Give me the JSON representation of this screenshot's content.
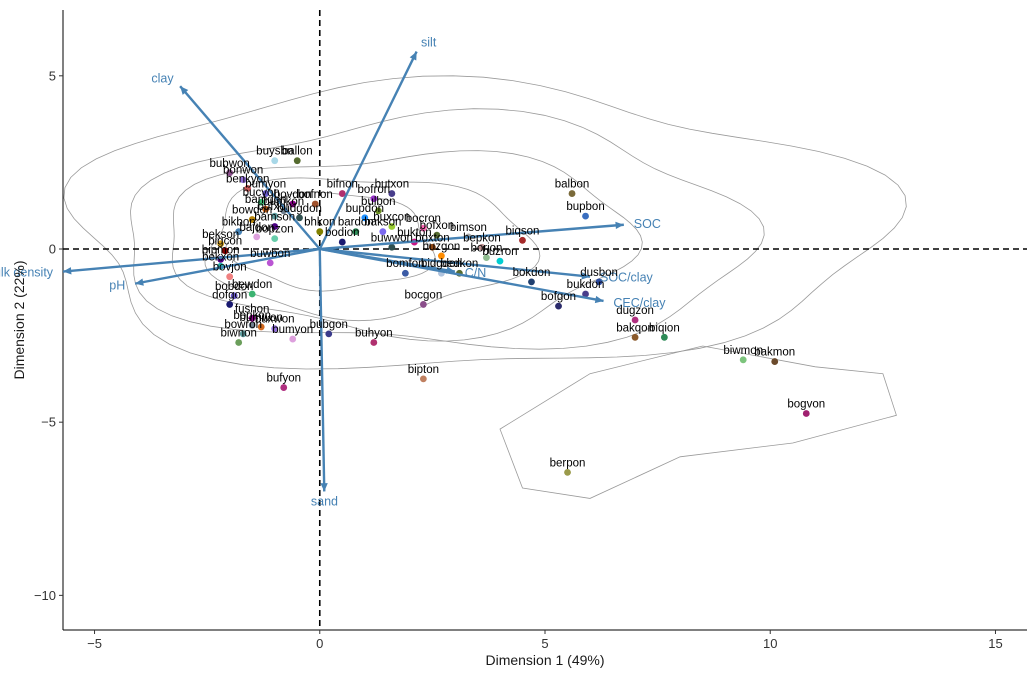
{
  "chart_data": {
    "type": "scatter",
    "xlabel": "Dimension 1 (49%)",
    "ylabel": "Dimension 2 (22%)",
    "xlim": [
      -5.7,
      15.7
    ],
    "ylim": [
      -11.0,
      6.9
    ],
    "x_ticks": [
      -5,
      0,
      5,
      10,
      15
    ],
    "x_tick_labels": [
      "−5",
      "0",
      "5",
      "10",
      "15"
    ],
    "y_ticks": [
      5,
      0,
      -5,
      -10
    ],
    "y_tick_labels": [
      "5",
      "0",
      "−5",
      "−10"
    ],
    "reference_lines": {
      "x": 0,
      "y": 0,
      "style": "dashed"
    },
    "grid": false,
    "vector_color": "#4682b4",
    "loading_vectors": [
      {
        "name": "silt",
        "x": 2.15,
        "y": 5.7
      },
      {
        "name": "clay",
        "x": -3.1,
        "y": 4.7
      },
      {
        "name": "SOC",
        "x": 6.75,
        "y": 0.7
      },
      {
        "name": "SOC/clay",
        "x": 6.0,
        "y": -0.8
      },
      {
        "name": "CEC/clay",
        "x": 6.3,
        "y": -1.5
      },
      {
        "name": "C/N",
        "x": 3.0,
        "y": -0.65
      },
      {
        "name": "sand",
        "x": 0.1,
        "y": -7.0
      },
      {
        "name": "bulk density",
        "x": -5.7,
        "y": -0.65
      },
      {
        "name": "pH",
        "x": -4.1,
        "y": -1.0
      }
    ],
    "points": [
      {
        "label": "buysbn",
        "x": -1.0,
        "y": 2.55,
        "color": "#a8d8e8"
      },
      {
        "label": "ballon",
        "x": -0.5,
        "y": 2.55,
        "color": "#556b2f"
      },
      {
        "label": "bubwon",
        "x": -2.0,
        "y": 2.2,
        "color": "#8b4f8b"
      },
      {
        "label": "bonwon",
        "x": -1.7,
        "y": 2.0,
        "color": "#9370db"
      },
      {
        "label": "benkyon",
        "x": -1.6,
        "y": 1.75,
        "color": "#cd5c5c"
      },
      {
        "label": "bumyon",
        "x": -1.2,
        "y": 1.6,
        "color": "#6a5acd"
      },
      {
        "label": "bifnon",
        "x": 0.5,
        "y": 1.6,
        "color": "#b0306f"
      },
      {
        "label": "butxon",
        "x": 1.6,
        "y": 1.6,
        "color": "#483d8b"
      },
      {
        "label": "bofron",
        "x": 1.2,
        "y": 1.45,
        "color": "#9932cc"
      },
      {
        "label": "bucyon",
        "x": -1.3,
        "y": 1.35,
        "color": "#3cb371"
      },
      {
        "label": "bovdon",
        "x": -0.6,
        "y": 1.3,
        "color": "#8b008b"
      },
      {
        "label": "bofnon",
        "x": -0.1,
        "y": 1.3,
        "color": "#a0522d"
      },
      {
        "label": "bulbon",
        "x": 1.3,
        "y": 1.1,
        "color": "#6b8e23"
      },
      {
        "label": "bamdon",
        "x": -1.2,
        "y": 1.15,
        "color": "#d2691e"
      },
      {
        "label": "bumkon",
        "x": -0.8,
        "y": 1.1,
        "color": "#708090"
      },
      {
        "label": "bufxon",
        "x": -1.0,
        "y": 0.95,
        "color": "#5f9ea0"
      },
      {
        "label": "budgdon",
        "x": -0.45,
        "y": 0.9,
        "color": "#2f4f4f"
      },
      {
        "label": "bowdon",
        "x": -1.5,
        "y": 0.85,
        "color": "#b8860b"
      },
      {
        "label": "bupdon",
        "x": 1.0,
        "y": 0.9,
        "color": "#1e90ff"
      },
      {
        "label": "buxcon",
        "x": 1.6,
        "y": 0.65,
        "color": "#9acd32"
      },
      {
        "label": "bocron",
        "x": 2.3,
        "y": 0.6,
        "color": "#ff69b4"
      },
      {
        "label": "bamson",
        "x": -1.0,
        "y": 0.65,
        "color": "#4b0082"
      },
      {
        "label": "bhkon",
        "x": 0.0,
        "y": 0.5,
        "color": "#808000"
      },
      {
        "label": "bardon",
        "x": 0.8,
        "y": 0.5,
        "color": "#2e8b57"
      },
      {
        "label": "bakson",
        "x": 1.4,
        "y": 0.5,
        "color": "#7b68ee"
      },
      {
        "label": "bofxon",
        "x": 2.6,
        "y": 0.4,
        "color": "#556b2f"
      },
      {
        "label": "bimson",
        "x": 3.3,
        "y": 0.35,
        "color": "#a9a9a9"
      },
      {
        "label": "bukton",
        "x": 2.1,
        "y": 0.2,
        "color": "#c71585"
      },
      {
        "label": "bikbon",
        "x": -1.8,
        "y": 0.5,
        "color": "#4682b4"
      },
      {
        "label": "bajdon",
        "x": -1.4,
        "y": 0.35,
        "color": "#dda0dd"
      },
      {
        "label": "bopzon",
        "x": -1.0,
        "y": 0.3,
        "color": "#66cdaa"
      },
      {
        "label": "bodion",
        "x": 0.5,
        "y": 0.2,
        "color": "#191970"
      },
      {
        "label": "bekson",
        "x": -2.2,
        "y": 0.15,
        "color": "#daa520"
      },
      {
        "label": "buwwon",
        "x": 1.6,
        "y": 0.05,
        "color": "#2f4f4f"
      },
      {
        "label": "boxton",
        "x": 2.5,
        "y": 0.05,
        "color": "#8b4513"
      },
      {
        "label": "bepkon",
        "x": 3.6,
        "y": 0.05,
        "color": "#bc8f8f"
      },
      {
        "label": "biqson",
        "x": 4.5,
        "y": 0.25,
        "color": "#a52a2a"
      },
      {
        "label": "bigcon",
        "x": -2.1,
        "y": -0.05,
        "color": "#800000"
      },
      {
        "label": "buzgon",
        "x": 2.7,
        "y": -0.2,
        "color": "#ff8c00"
      },
      {
        "label": "borjon",
        "x": 3.7,
        "y": -0.25,
        "color": "#8fbc8f"
      },
      {
        "label": "buzron",
        "x": 4.0,
        "y": -0.35,
        "color": "#00ced1"
      },
      {
        "label": "bipmon",
        "x": -2.2,
        "y": -0.3,
        "color": "#4b0082"
      },
      {
        "label": "bekxon",
        "x": -2.2,
        "y": -0.5,
        "color": "#20b2aa"
      },
      {
        "label": "buwbon",
        "x": -1.1,
        "y": -0.4,
        "color": "#ba55d3"
      },
      {
        "label": "bovjon",
        "x": -2.0,
        "y": -0.8,
        "color": "#f08080"
      },
      {
        "label": "bomfon",
        "x": 1.9,
        "y": -0.7,
        "color": "#3b5ba5"
      },
      {
        "label": "bidgdon",
        "x": 2.7,
        "y": -0.7,
        "color": "#b0c4de"
      },
      {
        "label": "bedkon",
        "x": 3.1,
        "y": -0.7,
        "color": "#556b2f"
      },
      {
        "label": "balbon",
        "x": 5.6,
        "y": 1.6,
        "color": "#7a6a3a"
      },
      {
        "label": "bupbon",
        "x": 5.9,
        "y": 0.95,
        "color": "#3a6fc0"
      },
      {
        "label": "bokdon",
        "x": 4.7,
        "y": -0.95,
        "color": "#1f3f6f"
      },
      {
        "label": "dusbon",
        "x": 6.2,
        "y": -0.95,
        "color": "#2a4aa0"
      },
      {
        "label": "bukdon",
        "x": 5.9,
        "y": -1.3,
        "color": "#483d8b"
      },
      {
        "label": "bofgon",
        "x": 5.3,
        "y": -1.65,
        "color": "#2b2b6b"
      },
      {
        "label": "bocgon",
        "x": 2.3,
        "y": -1.6,
        "color": "#8b4f8b"
      },
      {
        "label": "dugzon",
        "x": 7.0,
        "y": -2.05,
        "color": "#b03080"
      },
      {
        "label": "bakqon",
        "x": 7.0,
        "y": -2.55,
        "color": "#8b5a2b"
      },
      {
        "label": "biqion",
        "x": 7.65,
        "y": -2.55,
        "color": "#2e8b57"
      },
      {
        "label": "bobdon",
        "x": -1.9,
        "y": -1.35,
        "color": "#6a5acd"
      },
      {
        "label": "bewdon",
        "x": -1.5,
        "y": -1.3,
        "color": "#3cb371"
      },
      {
        "label": "dofgon",
        "x": -2.0,
        "y": -1.6,
        "color": "#191970"
      },
      {
        "label": "fushon",
        "x": -1.5,
        "y": -2.0,
        "color": "#8b008b"
      },
      {
        "label": "bopkon",
        "x": -1.5,
        "y": -2.2,
        "color": "#708090"
      },
      {
        "label": "bumwon",
        "x": -1.3,
        "y": -2.25,
        "color": "#d2691e"
      },
      {
        "label": "buxwon",
        "x": -1.0,
        "y": -2.3,
        "color": "#9370db"
      },
      {
        "label": "bowron",
        "x": -1.7,
        "y": -2.45,
        "color": "#5f9ea0"
      },
      {
        "label": "bubgon",
        "x": 0.2,
        "y": -2.45,
        "color": "#3b3b8b"
      },
      {
        "label": "bumyon",
        "x": -0.6,
        "y": -2.6,
        "color": "#dda0dd"
      },
      {
        "label": "buhyon",
        "x": 1.2,
        "y": -2.7,
        "color": "#b0306f"
      },
      {
        "label": "biwnon",
        "x": -1.8,
        "y": -2.7,
        "color": "#6b9e5b"
      },
      {
        "label": "bipton",
        "x": 2.3,
        "y": -3.75,
        "color": "#c08060"
      },
      {
        "label": "bufyon",
        "x": -0.8,
        "y": -4.0,
        "color": "#b03080"
      },
      {
        "label": "biwmon",
        "x": 9.4,
        "y": -3.2,
        "color": "#7cc47c"
      },
      {
        "label": "bakmon",
        "x": 10.1,
        "y": -3.25,
        "color": "#6b4a2b"
      },
      {
        "label": "bogvon",
        "x": 10.8,
        "y": -4.75,
        "color": "#a02070"
      },
      {
        "label": "berpon",
        "x": 5.5,
        "y": -6.45,
        "color": "#9a9a4a"
      }
    ]
  }
}
